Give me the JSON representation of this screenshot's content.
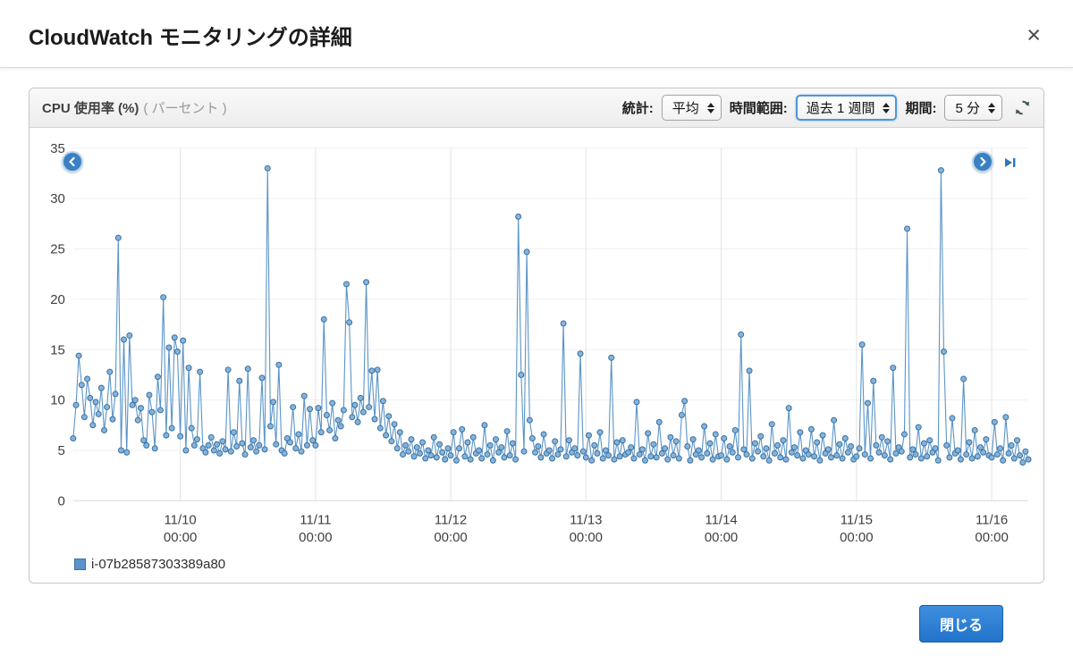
{
  "modal": {
    "title": "CloudWatch モニタリングの詳細",
    "close_symbol": "×"
  },
  "panel": {
    "metric_title": "CPU 使用率 (%)",
    "metric_unit": "( パーセント )",
    "controls": {
      "statistic_label": "統計:",
      "statistic_value": "平均",
      "range_label": "時間範囲:",
      "range_value": "過去 1 週間",
      "period_label": "期間:",
      "period_value": "5 分"
    },
    "icons": {
      "refresh": "refresh-icon",
      "scroll_left": "chevron-left-icon",
      "scroll_right": "chevron-right-icon",
      "skip_to_latest": "skip-to-end-icon"
    }
  },
  "footer": {
    "close_button": "閉じる"
  },
  "chart_data": {
    "type": "line",
    "title": "CPU 使用率 (%)",
    "xlabel": "",
    "ylabel": "",
    "ylim": [
      0,
      35
    ],
    "grid": true,
    "legend_position": "bottom-left",
    "y_ticks": [
      0,
      5,
      10,
      15,
      20,
      25,
      30,
      35
    ],
    "x_tick_labels": [
      "11/10 00:00",
      "11/11 00:00",
      "11/12 00:00",
      "11/13 00:00",
      "11/14 00:00",
      "11/15 00:00",
      "11/16 00:00"
    ],
    "x_tick_indices": [
      38,
      86,
      134,
      182,
      230,
      278,
      326
    ],
    "colors": {
      "line": "#5b94c8",
      "marker_fill": "#85b3dc",
      "marker_stroke": "#39719f"
    },
    "series": [
      {
        "name": "i-07b28587303389a80",
        "values": [
          6.2,
          9.5,
          14.4,
          11.5,
          8.3,
          12.1,
          10.2,
          7.5,
          9.8,
          8.6,
          11.2,
          7.0,
          9.3,
          12.8,
          8.1,
          10.6,
          26.1,
          5.0,
          16.0,
          4.8,
          16.4,
          9.5,
          10.0,
          8.0,
          9.2,
          6.0,
          5.5,
          10.5,
          8.8,
          5.2,
          12.3,
          9.0,
          20.2,
          6.5,
          15.2,
          7.2,
          16.2,
          14.8,
          6.4,
          15.9,
          5.0,
          13.2,
          7.2,
          5.5,
          6.1,
          12.8,
          5.2,
          4.8,
          5.5,
          6.3,
          5.0,
          5.6,
          4.7,
          5.9,
          5.1,
          13.0,
          4.9,
          6.8,
          5.4,
          11.9,
          5.7,
          4.6,
          13.1,
          5.3,
          6.0,
          4.9,
          5.5,
          12.2,
          5.1,
          33.0,
          7.4,
          9.8,
          5.6,
          13.5,
          5.0,
          4.7,
          6.2,
          5.8,
          9.3,
          5.2,
          6.6,
          4.9,
          10.4,
          5.5,
          9.1,
          6.0,
          5.5,
          9.2,
          6.8,
          18.0,
          8.5,
          7.0,
          9.7,
          6.2,
          8.0,
          7.4,
          9.0,
          21.5,
          17.7,
          8.3,
          9.5,
          7.8,
          10.2,
          8.8,
          21.7,
          9.3,
          12.9,
          8.1,
          13.0,
          7.2,
          9.9,
          6.5,
          8.4,
          5.9,
          7.6,
          5.2,
          6.8,
          4.6,
          5.5,
          4.9,
          6.1,
          4.4,
          5.3,
          4.7,
          5.8,
          4.2,
          5.0,
          4.5,
          6.3,
          4.3,
          5.6,
          4.8,
          4.1,
          5.2,
          4.5,
          6.8,
          4.0,
          5.2,
          7.1,
          4.4,
          5.8,
          4.1,
          6.3,
          4.7,
          5.0,
          4.2,
          7.5,
          4.6,
          5.5,
          4.0,
          6.1,
          4.8,
          5.3,
          4.3,
          6.9,
          4.5,
          5.7,
          4.1,
          28.2,
          12.5,
          4.9,
          24.7,
          8.0,
          6.2,
          4.8,
          5.4,
          4.3,
          6.6,
          4.7,
          5.0,
          4.2,
          5.9,
          4.6,
          5.1,
          17.6,
          4.4,
          6.0,
          4.8,
          5.2,
          4.5,
          14.6,
          4.9,
          4.3,
          6.5,
          4.0,
          5.5,
          4.7,
          6.8,
          4.2,
          5.0,
          4.5,
          14.2,
          4.1,
          5.8,
          4.4,
          6.0,
          4.6,
          4.8,
          5.3,
          4.2,
          9.8,
          4.6,
          5.1,
          4.0,
          6.7,
          4.4,
          5.6,
          4.3,
          7.8,
          4.7,
          5.2,
          4.1,
          6.3,
          4.5,
          5.9,
          4.2,
          8.5,
          9.9,
          5.4,
          4.0,
          6.1,
          4.6,
          5.0,
          4.3,
          7.4,
          4.7,
          5.7,
          4.1,
          6.6,
          4.4,
          4.5,
          6.2,
          4.1,
          5.4,
          4.8,
          7.0,
          4.3,
          16.5,
          5.1,
          4.6,
          12.9,
          4.2,
          5.7,
          4.9,
          6.4,
          4.4,
          5.2,
          4.0,
          7.6,
          4.7,
          5.5,
          4.3,
          6.0,
          4.1,
          9.2,
          4.8,
          5.3,
          4.5,
          6.8,
          4.2,
          5.0,
          4.6,
          7.1,
          4.4,
          5.8,
          4.0,
          6.5,
          4.7,
          5.1,
          4.3,
          8.0,
          4.5,
          5.6,
          4.2,
          6.2,
          4.8,
          5.4,
          4.1,
          4.4,
          5.2,
          15.5,
          4.6,
          9.7,
          4.2,
          11.9,
          5.5,
          4.8,
          6.3,
          4.5,
          5.9,
          4.1,
          13.2,
          4.7,
          5.3,
          4.9,
          6.6,
          27.0,
          4.3,
          5.1,
          4.6,
          7.3,
          4.2,
          5.7,
          4.4,
          6.0,
          4.8,
          5.2,
          4.0,
          32.8,
          14.8,
          5.5,
          4.3,
          8.2,
          4.7,
          5.0,
          4.1,
          12.1,
          4.6,
          5.8,
          4.2,
          7.0,
          4.4,
          5.3,
          4.8,
          6.1,
          4.5,
          4.3,
          7.8,
          4.6,
          5.2,
          4.0,
          8.3,
          4.7,
          5.5,
          4.2,
          6.0,
          4.5,
          3.8,
          4.9,
          4.1
        ]
      }
    ]
  }
}
